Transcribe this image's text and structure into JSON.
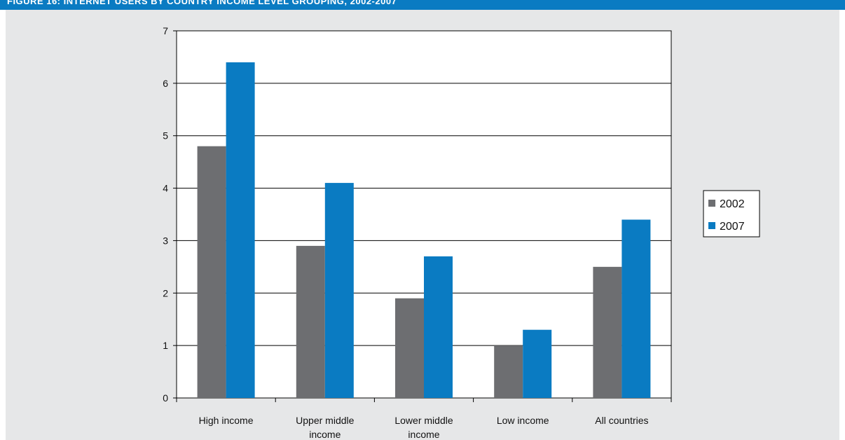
{
  "header": {
    "title": "FIGURE 16: INTERNET USERS BY COUNTRY INCOME LEVEL GROUPING, 2002-2007"
  },
  "colors": {
    "header_bg": "#0a7bc2",
    "plot_bg": "#e6e7e8",
    "series_2002": "#6d6e71",
    "series_2007": "#0a7bc2"
  },
  "chart_data": {
    "type": "bar",
    "title": "",
    "xlabel": "",
    "ylabel": "",
    "categories": [
      [
        "High income"
      ],
      [
        "Upper middle",
        "income"
      ],
      [
        "Lower middle",
        "income"
      ],
      [
        "Low income"
      ],
      [
        "All countries"
      ]
    ],
    "series": [
      {
        "name": "2002",
        "color": "#6d6e71",
        "values": [
          4.8,
          2.9,
          1.9,
          1.0,
          2.5
        ]
      },
      {
        "name": "2007",
        "color": "#0a7bc2",
        "values": [
          6.4,
          4.1,
          2.7,
          1.3,
          3.4
        ]
      }
    ],
    "ylim": [
      0,
      7
    ],
    "yticks": [
      0,
      1,
      2,
      3,
      4,
      5,
      6,
      7
    ],
    "grid": true,
    "legend": "right"
  }
}
